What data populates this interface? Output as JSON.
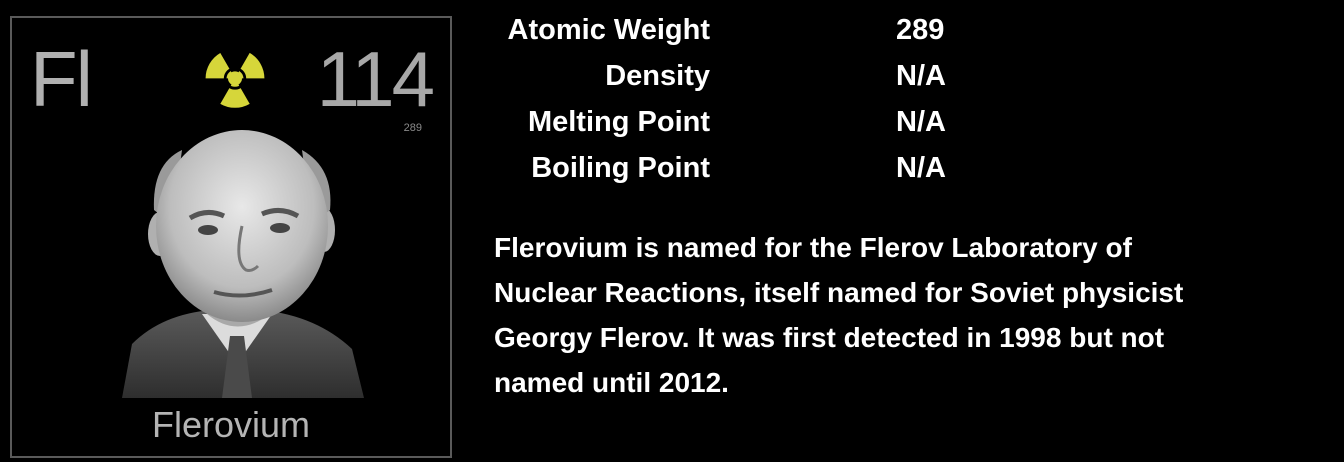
{
  "tile": {
    "symbol": "Fl",
    "atomic_number": "114",
    "weight": "289",
    "name": "Flerovium",
    "hazard_icon": "radiation-icon",
    "hazard_color": "#d6d63a"
  },
  "properties": [
    {
      "label": "Atomic Weight",
      "value": "289"
    },
    {
      "label": "Density",
      "value": "N/A"
    },
    {
      "label": "Melting Point",
      "value": "N/A"
    },
    {
      "label": "Boiling Point",
      "value": "N/A"
    }
  ],
  "description": "Flerovium is named for the Flerov Laboratory of Nuclear Reactions, itself named for Soviet physicist Georgy Flerov.  It was first detected in 1998 but not named until 2012."
}
